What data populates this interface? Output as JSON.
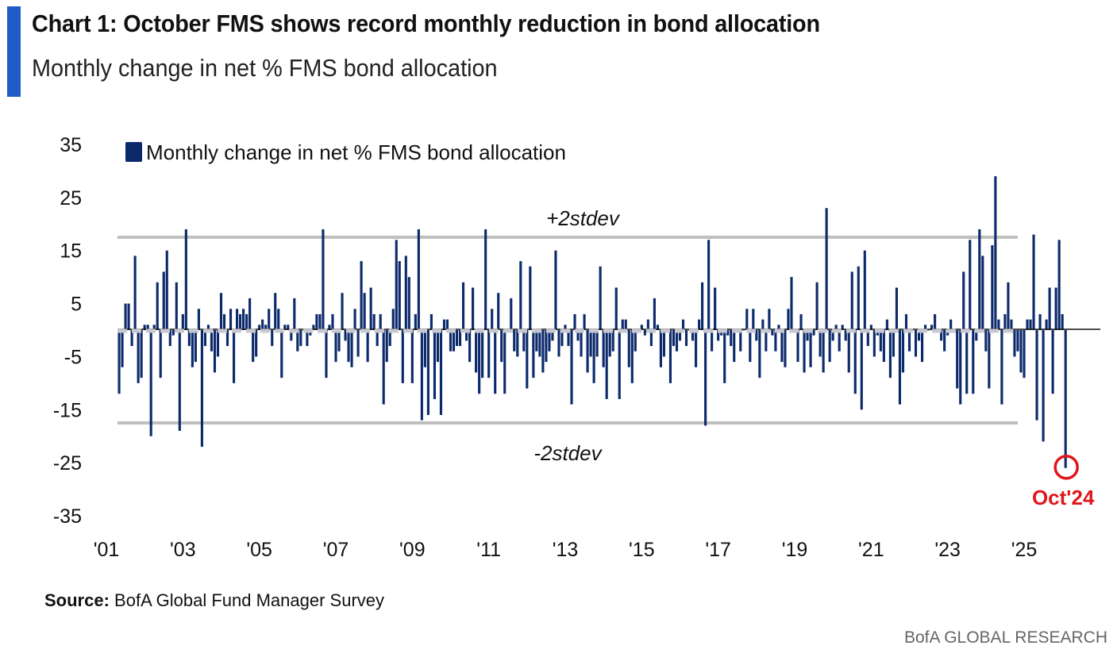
{
  "header": {
    "title": "Chart 1: October FMS shows record monthly reduction in bond allocation",
    "subtitle": "Monthly change in net % FMS bond allocation",
    "accent_color": "#1e5bc6"
  },
  "chart_data": {
    "type": "bar",
    "title": "Chart 1: October FMS shows record monthly reduction in bond allocation",
    "subtitle": "Monthly change in net % FMS bond allocation",
    "ylabel": "",
    "xlabel": "",
    "ylim": [
      -35,
      35
    ],
    "y_ticks": [
      "35",
      "25",
      "15",
      "5",
      "-5",
      "-15",
      "-25",
      "-35"
    ],
    "y_tick_values": [
      35,
      25,
      15,
      5,
      -5,
      -15,
      -25,
      -35
    ],
    "x_ticks": [
      "'01",
      "'03",
      "'05",
      "'07",
      "'09",
      "'11",
      "'13",
      "'15",
      "'17",
      "'19",
      "'21",
      "'23",
      "'25"
    ],
    "x_tick_values": [
      2001,
      2003,
      2005,
      2007,
      2009,
      2011,
      2013,
      2015,
      2017,
      2019,
      2021,
      2023,
      2025
    ],
    "x_start": "2001-05",
    "legend": "Monthly change in net % FMS bond allocation",
    "series_color": "#0c2a6b",
    "band_color": "#bfbfbf",
    "mean_line_color": "#c8c8d0",
    "upper_band": {
      "value": 17.5,
      "label": "+2stdev"
    },
    "lower_band": {
      "value": -17.5,
      "label": "-2stdev"
    },
    "annotation": {
      "label": "Oct'24",
      "value": -26,
      "color": "#e0161b"
    },
    "series": [
      {
        "name": "Monthly change in net % FMS bond allocation",
        "values": [
          -12,
          -7,
          5,
          5,
          -3,
          14,
          -10,
          -9,
          1,
          1,
          -20,
          1,
          9,
          -9,
          11,
          15,
          -3,
          -1,
          9,
          -19,
          3,
          19,
          -3,
          -7,
          -6,
          4,
          -22,
          -3,
          1,
          -4,
          -8,
          -5,
          7,
          3,
          -3,
          4,
          -10,
          4,
          3,
          4,
          3,
          6,
          -6,
          -5,
          1,
          2,
          1,
          4,
          -3,
          7,
          4,
          -9,
          1,
          1,
          -2,
          6,
          -4,
          -3,
          0,
          -3,
          -1,
          1,
          3,
          3,
          19,
          -9,
          1,
          3,
          -6,
          -4,
          7,
          -2,
          -6,
          -7,
          4,
          -5,
          13,
          7,
          -6,
          8,
          3,
          -3,
          3,
          -14,
          -6,
          -3,
          4,
          17,
          13,
          -10,
          14,
          10,
          -10,
          3,
          19,
          -17,
          -7,
          -16,
          3,
          -13,
          -6,
          -16,
          2,
          2,
          -4,
          -4,
          -3,
          -3,
          9,
          -2,
          -6,
          8,
          -8,
          -12,
          -9,
          19,
          -9,
          4,
          -12,
          7,
          -6,
          -12,
          0,
          6,
          -4,
          -5,
          13,
          -4,
          -11,
          12,
          -9,
          -4,
          -5,
          -8,
          -6,
          -4,
          -2,
          15,
          -5,
          -3,
          1,
          -3,
          -14,
          3,
          -2,
          -5,
          3,
          -8,
          -5,
          -10,
          -5,
          12,
          -7,
          -13,
          -5,
          -4,
          8,
          -13,
          2,
          2,
          -7,
          -10,
          -4,
          0,
          1,
          -1,
          2,
          -3,
          6,
          1,
          -7,
          -5,
          0,
          -10,
          -3,
          -4,
          -2,
          2,
          -3,
          0,
          -2,
          -7,
          2,
          9,
          -18,
          17,
          -4,
          8,
          -2,
          -1,
          -10,
          -1,
          -3,
          -6,
          0,
          -4,
          0,
          4,
          -6,
          4,
          -2,
          -9,
          2,
          -4,
          4,
          -1,
          -4,
          1,
          -6,
          -7,
          4,
          10,
          0,
          -6,
          3,
          -8,
          -2,
          -7,
          -1,
          9,
          -5,
          -8,
          23,
          -6,
          -2,
          1,
          -4,
          1,
          -2,
          -8,
          11,
          -12,
          12,
          -15,
          15,
          -3,
          1,
          -5,
          -1,
          -4,
          -6,
          2,
          -9,
          -5,
          8,
          -14,
          -8,
          3,
          -4,
          0,
          -5,
          -2,
          -6,
          1,
          0,
          1,
          3,
          0,
          -2,
          -4,
          -1,
          2,
          0,
          -11,
          -14,
          11,
          -12,
          17,
          -12,
          -2,
          19,
          14,
          -4,
          -11,
          16,
          29,
          2,
          -14,
          3,
          9,
          2,
          -5,
          -4,
          -8,
          -9,
          2,
          2,
          18,
          -17,
          3,
          -21,
          2,
          8,
          -12,
          8,
          17,
          3,
          -26
        ]
      }
    ]
  },
  "footer": {
    "source_label": "Source:",
    "source_text": "BofA Global Fund Manager Survey",
    "brand": "BofA GLOBAL RESEARCH"
  }
}
